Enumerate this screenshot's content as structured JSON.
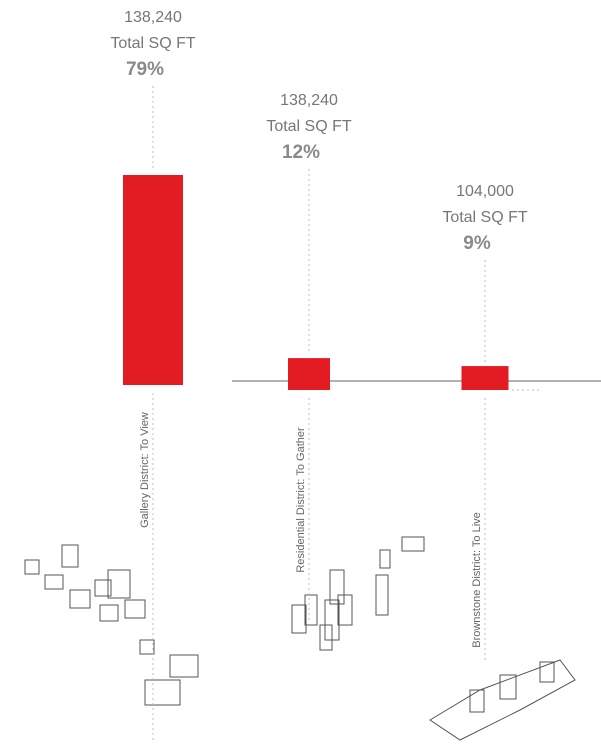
{
  "chart_data": {
    "type": "bar",
    "categories": [
      "Gallery District:  To View",
      "Residential District:  To Gather",
      "Brownstone District:  To Live"
    ],
    "values": [
      79,
      12,
      9
    ],
    "value_labels": [
      "79%",
      "12%",
      "9%"
    ],
    "annotations": [
      [
        "138,240",
        "Total SQ FT"
      ],
      [
        "138,240",
        "Total SQ FT"
      ],
      [
        "104,000",
        "Total SQ FT"
      ]
    ],
    "color": "#e31b23"
  }
}
